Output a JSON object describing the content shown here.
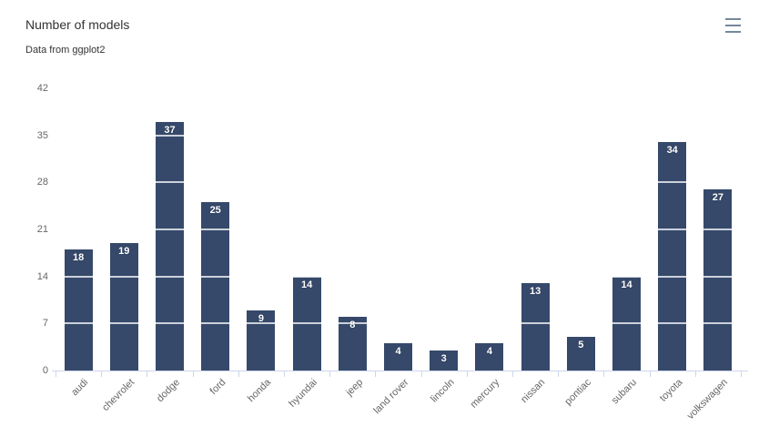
{
  "header": {
    "title": "Number of models",
    "subtitle": "Data from ggplot2",
    "menu_icon": "hamburger-icon"
  },
  "chart_data": {
    "type": "bar",
    "title": "Number of models",
    "subtitle": "Data from ggplot2",
    "categories": [
      "audi",
      "chevrolet",
      "dodge",
      "ford",
      "honda",
      "hyundai",
      "jeep",
      "land rover",
      "lincoln",
      "mercury",
      "nissan",
      "pontiac",
      "subaru",
      "toyota",
      "volkswagen"
    ],
    "values": [
      18,
      19,
      37,
      25,
      9,
      14,
      8,
      4,
      3,
      4,
      13,
      5,
      14,
      34,
      27
    ],
    "xlabel": "",
    "ylabel": "",
    "ylim": [
      0,
      42
    ],
    "yticks": [
      0,
      7,
      14,
      21,
      28,
      35,
      42
    ],
    "grid": true,
    "grid_style": "white gridlines drawn above bars",
    "legend": "none",
    "data_labels": "white values inside bar tops",
    "x_label_rotation": -45,
    "colors": {
      "bar": "#36496B",
      "data_label": "#FFFFFF",
      "axis_label": "#666666",
      "title": "#333333",
      "subtitle": "#333333",
      "axis_line": "#CCD6EB",
      "grid_line": "#FFFFFF",
      "menu_icon": "#76879B",
      "background": "#FFFFFF"
    }
  }
}
